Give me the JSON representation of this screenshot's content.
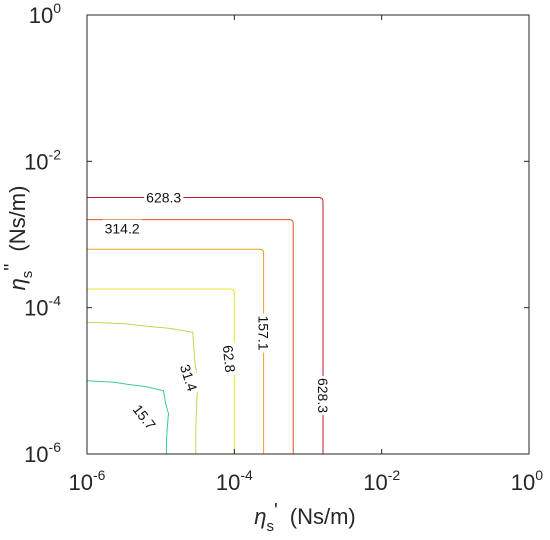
{
  "chart_data": {
    "type": "contour",
    "title": "",
    "xlabel": {
      "symbol": "η",
      "sub": "s",
      "mark": "'",
      "units": "(Ns/m)"
    },
    "ylabel": {
      "symbol": "η",
      "sub": "s",
      "mark": "\"",
      "units": "(Ns/m)"
    },
    "xscale": "log",
    "yscale": "log",
    "xlim": [
      1e-06,
      1
    ],
    "ylim": [
      1e-06,
      1
    ],
    "xticks": [
      {
        "base": "10",
        "exp": "-6",
        "value": 1e-06
      },
      {
        "base": "10",
        "exp": "-4",
        "value": 0.0001
      },
      {
        "base": "10",
        "exp": "-2",
        "value": 0.01
      },
      {
        "base": "10",
        "exp": "0",
        "value": 1
      }
    ],
    "yticks": [
      {
        "base": "10",
        "exp": "-6",
        "value": 1e-06
      },
      {
        "base": "10",
        "exp": "-4",
        "value": 0.0001
      },
      {
        "base": "10",
        "exp": "-2",
        "value": 0.01
      },
      {
        "base": "10",
        "exp": "0",
        "value": 1
      }
    ],
    "grid": false,
    "contours": [
      {
        "level": "15.7",
        "color": "#3cc8a0",
        "x_corner": 1.2e-05,
        "y_corner": 1e-05,
        "shape": "jagged",
        "labels": [
          {
            "text": "15.7",
            "x": 6e-06,
            "y": 3.2e-06,
            "angle": 52
          }
        ]
      },
      {
        "level": "31.4",
        "color": "#b4e04a",
        "x_corner": 3e-05,
        "y_corner": 6.3e-05,
        "shape": "jagged",
        "labels": [
          {
            "text": "31.4",
            "x": 2.4e-05,
            "y": 1.1e-05,
            "angle": 72
          }
        ]
      },
      {
        "level": "62.8",
        "color": "#f2e028",
        "x_corner": 0.0001,
        "y_corner": 0.00018,
        "shape": "smooth",
        "labels": [
          {
            "text": "62.8",
            "x": 8.5e-05,
            "y": 2e-05,
            "angle": 84
          }
        ]
      },
      {
        "level": "157.1",
        "color": "#e8a020",
        "x_corner": 0.00025,
        "y_corner": 0.00063,
        "shape": "smooth",
        "labels": [
          {
            "text": "157.1",
            "x": 0.00025,
            "y": 4.5e-05,
            "angle": 90
          }
        ]
      },
      {
        "level": "314.2",
        "color": "#e0531f",
        "x_corner": 0.00063,
        "y_corner": 0.0016,
        "shape": "smooth",
        "labels": [
          {
            "text": "314.2",
            "x": 3e-06,
            "y": 0.0012,
            "angle": 0
          }
        ]
      },
      {
        "level": "628.3",
        "color": "#c41a24",
        "x_corner": 0.0016,
        "y_corner": 0.0032,
        "shape": "smooth",
        "labels": [
          {
            "text": "628.3",
            "x": 0.0016,
            "y": 6.3e-06,
            "angle": 90
          },
          {
            "text": "628.3",
            "x": 1.1e-05,
            "y": 0.0032,
            "angle": 0
          }
        ]
      }
    ]
  }
}
